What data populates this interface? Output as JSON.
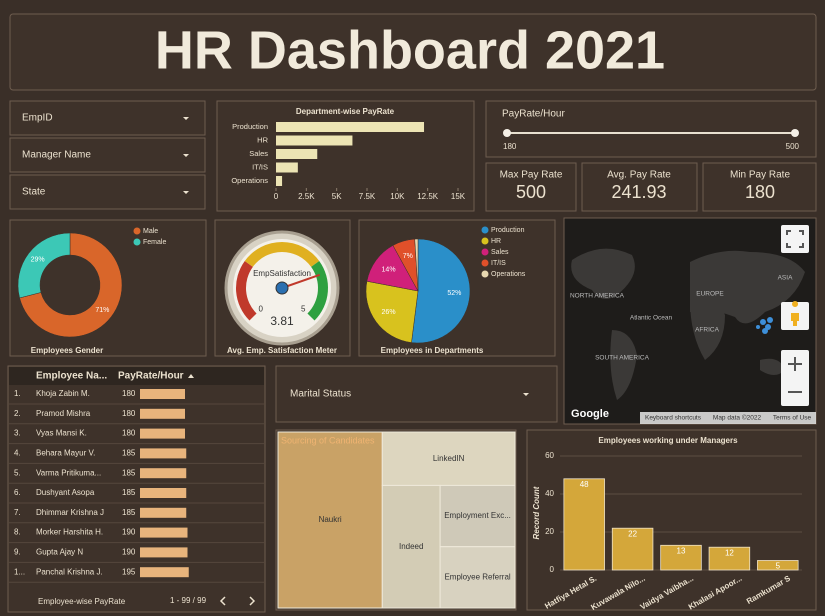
{
  "title": "HR Dashboard 2021",
  "filters": [
    "EmpID",
    "Manager Name",
    "State",
    "Marital Status"
  ],
  "slider": {
    "label": "PayRate/Hour",
    "min": 180,
    "max": 500
  },
  "kpis": [
    {
      "label": "Max Pay Rate",
      "value": 500
    },
    {
      "label": "Avg. Pay Rate",
      "value": 241.93
    },
    {
      "label": "Min Pay Rate",
      "value": 180
    }
  ],
  "table": {
    "columns": [
      "Employee Na...",
      "PayRate/Hour"
    ],
    "rows": [
      [
        "1.",
        "Khoja Zabin M.",
        180
      ],
      [
        "2.",
        "Pramod Mishra",
        180
      ],
      [
        "3.",
        "Vyas Mansi K.",
        180
      ],
      [
        "4.",
        "Behara Mayur V.",
        185
      ],
      [
        "5.",
        "Varma Pritikuma...",
        185
      ],
      [
        "6.",
        "Dushyant Asopa",
        185
      ],
      [
        "7.",
        "Dhimmar Krishna J",
        185
      ],
      [
        "8.",
        "Morker Harshita H.",
        190
      ],
      [
        "9.",
        "Gupta Ajay N",
        190
      ],
      [
        "1...",
        "Panchal Krishna J.",
        195
      ]
    ],
    "caption": "Employee-wise PayRate",
    "pagination": "1 - 99 / 99"
  },
  "map": {
    "labels": [
      "NORTH AMERICA",
      "EUROPE",
      "ASIA",
      "AFRICA",
      "SOUTH AMERICA",
      "Atlantic Ocean",
      "Google",
      "Keyboard shortcuts",
      "Map data ©2022",
      "Terms of Use"
    ]
  },
  "chart_data": [
    {
      "type": "hbar",
      "title": "Department-wise PayRate",
      "categories": [
        "Production",
        "HR",
        "Sales",
        "IT/IS",
        "Operations"
      ],
      "values": [
        12200,
        6300,
        3400,
        1800,
        500
      ],
      "color": "#ece4b4",
      "xlim": [
        0,
        15000
      ],
      "xticks": [
        0,
        {
          "value": 2500,
          "label": "2.5K"
        },
        {
          "value": 5000,
          "label": "5K"
        },
        {
          "value": 7500,
          "label": "7.5K"
        },
        {
          "value": 10000,
          "label": "10K"
        },
        {
          "value": 12500,
          "label": "12.5K"
        },
        {
          "value": 15000,
          "label": "15K"
        }
      ]
    },
    {
      "type": "donut",
      "title": "Employees Gender",
      "categories": [
        "Male",
        "Female"
      ],
      "values": [
        71,
        29
      ],
      "value_labels": [
        "71%",
        "29%"
      ],
      "colors": [
        "#d9662a",
        "#3cc8b6"
      ]
    },
    {
      "type": "gauge",
      "title": "Avg. Emp. Satisfaction Meter",
      "label": "EmpSatisfaction",
      "value": 3.81,
      "lim": [
        0,
        5
      ],
      "ticks": [
        0,
        5
      ],
      "bands": [
        {
          "from": 0,
          "to": 1.5,
          "color": "#c0392b"
        },
        {
          "from": 1.5,
          "to": 3.5,
          "color": "#e0b020"
        },
        {
          "from": 3.5,
          "to": 5,
          "color": "#2ea040"
        }
      ]
    },
    {
      "type": "pie",
      "title": "Employees in Departments",
      "categories": [
        "Production",
        "HR",
        "Sales",
        "IT/IS",
        "Operations"
      ],
      "values": [
        52,
        26,
        14,
        7,
        1
      ],
      "value_labels": [
        "52%",
        "26%",
        "14%",
        "7%",
        null
      ],
      "colors": [
        "#2a8fc9",
        "#d8c21e",
        "#d0207a",
        "#e0502a",
        "#e8d8b0"
      ]
    },
    {
      "type": "treemap",
      "title": "Sourcing of Candidates",
      "categories": [
        "Naukri",
        "LinkedIN",
        "Indeed",
        "Employment Exc...",
        "Employee Referral"
      ],
      "values": [
        44,
        17,
        17,
        11,
        11
      ],
      "colors": [
        "#c9a266",
        "#ddd6bf",
        "#d3ccb5",
        "#cfc9b8",
        "#d8d2c0"
      ]
    },
    {
      "type": "bar",
      "title": "Employees working under Managers",
      "ylabel": "Record Count",
      "categories": [
        "Hatfiya Hetal S.",
        "Kuvawala Nilo...",
        "Vaidya Vaibha...",
        "Khalasi Apoor...",
        "Ramkumar S"
      ],
      "values": [
        48,
        22,
        13,
        12,
        5
      ],
      "color": "#d4a73a",
      "ylim": [
        0,
        60
      ],
      "yticks": [
        0,
        20,
        40,
        60
      ],
      "grid": true
    }
  ]
}
